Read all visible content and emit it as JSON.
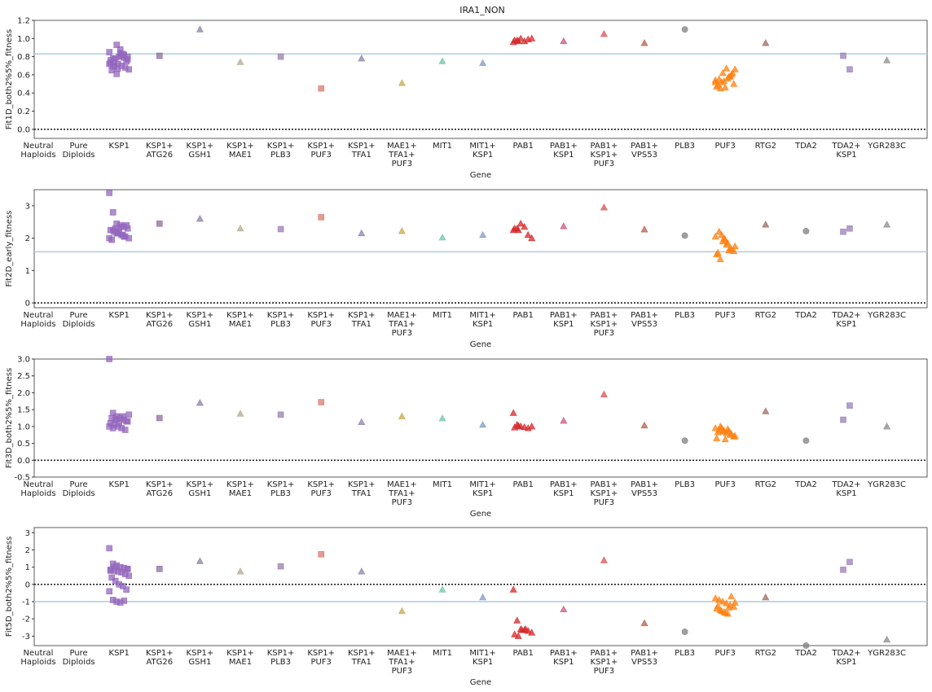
{
  "title": "IRA1_NON",
  "chart_data": [
    {
      "type": "scatter",
      "ylabel": "Fit1D_both2%5%_fitness",
      "xlabel": "Gene",
      "categories": [
        "Neutral\nHaploids",
        "Pure\nDiploids",
        "KSP1",
        "KSP1+\nATG26",
        "KSP1+\nGSH1",
        "KSP1+\nMAE1",
        "KSP1+\nPLB3",
        "KSP1+\nPUF3",
        "KSP1+\nTFA1",
        "MAE1+\nTFA1+\nPUF3",
        "MIT1",
        "MIT1+\nKSP1",
        "PAB1",
        "PAB1+\nKSP1",
        "PAB1+\nKSP1+\nPUF3",
        "PAB1+\nVPS53",
        "PLB3",
        "PUF3",
        "RTG2",
        "TDA2",
        "TDA2+\nKSP1",
        "YGR283C"
      ],
      "colors": [
        "#9467bd",
        "#9467bd",
        "#9467bd",
        "#8c6d9e",
        "#8c7fa0",
        "#b4a88a",
        "#9a7fae",
        "#d97a6c",
        "#8d81ad",
        "#c9a84f",
        "#6cc4a8",
        "#7f99c4",
        "#d62728",
        "#c65a7a",
        "#d9534f",
        "#b8604e",
        "#808080",
        "#ff7f0e",
        "#9c6b5a",
        "#7f7f7f",
        "#9a7fb8",
        "#8c8c8c"
      ],
      "markers": [
        "square",
        "square",
        "square",
        "square",
        "triangle",
        "triangle",
        "square",
        "square",
        "triangle",
        "triangle",
        "triangle",
        "triangle",
        "triangle",
        "triangle",
        "triangle",
        "triangle",
        "circle",
        "triangle",
        "triangle",
        "circle",
        "square",
        "triangle"
      ],
      "values": [
        [],
        [],
        [
          0.85,
          0.78,
          0.93,
          0.88,
          0.82,
          0.8,
          0.76,
          0.74,
          0.72,
          0.7,
          0.68,
          0.66,
          0.65,
          0.78,
          0.8,
          0.83,
          0.75,
          0.72,
          0.7,
          0.61,
          0.84,
          0.79,
          0.77,
          0.73,
          0.69,
          0.67,
          0.81
        ],
        [
          0.81
        ],
        [
          1.1
        ],
        [
          0.74
        ],
        [
          0.8
        ],
        [
          0.45
        ],
        [
          0.78
        ],
        [
          0.51
        ],
        [
          0.75
        ],
        [
          0.73
        ],
        [
          0.96,
          0.98,
          1.0,
          0.97,
          0.99,
          1.0,
          0.98,
          0.97
        ],
        [
          0.97
        ],
        [
          1.05
        ],
        [
          0.95
        ],
        [
          1.1
        ],
        [
          0.52,
          0.55,
          0.62,
          0.67,
          0.58,
          0.5,
          0.47,
          0.45,
          0.53,
          0.56,
          0.6,
          0.66,
          0.49,
          0.52,
          0.46,
          0.58,
          0.62,
          0.54
        ],
        [
          0.95
        ],
        [],
        [
          0.81,
          0.66
        ],
        [
          0.76
        ]
      ],
      "reference_lines": [
        {
          "value": 0,
          "style": "dotted",
          "color": "#222222"
        },
        {
          "value": 0.83,
          "style": "solid",
          "color": "#b7d3e0"
        }
      ],
      "ylim": [
        -0.1,
        1.2
      ],
      "yticks": [
        {
          "value": 0,
          "label": "0.0"
        },
        {
          "value": 0.2,
          "label": "0.2"
        },
        {
          "value": 0.4,
          "label": "0.4"
        },
        {
          "value": 0.6,
          "label": "0.6"
        },
        {
          "value": 0.8,
          "label": "0.8"
        },
        {
          "value": 1.0,
          "label": "1.0"
        },
        {
          "value": 1.2,
          "label": "1.2"
        }
      ]
    },
    {
      "type": "scatter",
      "ylabel": "Fit2D_early_fitness",
      "xlabel": "Gene",
      "categories": [
        "Neutral\nHaploids",
        "Pure\nDiploids",
        "KSP1",
        "KSP1+\nATG26",
        "KSP1+\nGSH1",
        "KSP1+\nMAE1",
        "KSP1+\nPLB3",
        "KSP1+\nPUF3",
        "KSP1+\nTFA1",
        "MAE1+\nTFA1+\nPUF3",
        "MIT1",
        "MIT1+\nKSP1",
        "PAB1",
        "PAB1+\nKSP1",
        "PAB1+\nKSP1+\nPUF3",
        "PAB1+\nVPS53",
        "PLB3",
        "PUF3",
        "RTG2",
        "TDA2",
        "TDA2+\nKSP1",
        "YGR283C"
      ],
      "colors": [
        "#9467bd",
        "#9467bd",
        "#9467bd",
        "#8c6d9e",
        "#8c7fa0",
        "#b4a88a",
        "#9a7fae",
        "#d97a6c",
        "#8d81ad",
        "#c9a84f",
        "#6cc4a8",
        "#7f99c4",
        "#d62728",
        "#c65a7a",
        "#d9534f",
        "#b8604e",
        "#808080",
        "#ff7f0e",
        "#9c6b5a",
        "#7f7f7f",
        "#9a7fb8",
        "#8c8c8c"
      ],
      "markers": [
        "square",
        "square",
        "square",
        "square",
        "triangle",
        "triangle",
        "square",
        "square",
        "triangle",
        "triangle",
        "triangle",
        "triangle",
        "triangle",
        "triangle",
        "triangle",
        "triangle",
        "circle",
        "triangle",
        "triangle",
        "circle",
        "square",
        "triangle"
      ],
      "values": [
        [],
        [],
        [
          3.4,
          2.8,
          2.45,
          2.4,
          2.35,
          2.3,
          2.25,
          2.2,
          2.15,
          2.1,
          2.05,
          2.0,
          1.95,
          2.3,
          2.2,
          2.1,
          2.4,
          2.0,
          2.25,
          2.15,
          2.35,
          2.05
        ],
        [
          2.45
        ],
        [
          2.6
        ],
        [
          2.3
        ],
        [
          2.28
        ],
        [
          2.65
        ],
        [
          2.15
        ],
        [
          2.22
        ],
        [
          2.02
        ],
        [
          2.1
        ],
        [
          2.25,
          2.3,
          2.45,
          2.35,
          2.1,
          2.0,
          2.3,
          2.25
        ],
        [
          2.37
        ],
        [
          2.95
        ],
        [
          2.27
        ],
        [
          2.08
        ],
        [
          2.05,
          2.2,
          1.9,
          1.8,
          1.7,
          1.6,
          1.5,
          1.35,
          2.0,
          1.85,
          1.65,
          1.75,
          1.55,
          2.1,
          1.95,
          1.62
        ],
        [
          2.42
        ],
        [
          2.22
        ],
        [
          2.2,
          2.3
        ],
        [
          2.42
        ]
      ],
      "reference_lines": [
        {
          "value": 0,
          "style": "dotted",
          "color": "#222222"
        },
        {
          "value": 1.58,
          "style": "solid",
          "color": "#b7d3e0"
        }
      ],
      "ylim": [
        -0.15,
        3.5
      ],
      "yticks": [
        0,
        1,
        2,
        3
      ]
    },
    {
      "type": "scatter",
      "ylabel": "Fit3D_both2%5%_fitness",
      "xlabel": "Gene",
      "categories": [
        "Neutral\nHaploids",
        "Pure\nDiploids",
        "KSP1",
        "KSP1+\nATG26",
        "KSP1+\nGSH1",
        "KSP1+\nMAE1",
        "KSP1+\nPLB3",
        "KSP1+\nPUF3",
        "KSP1+\nTFA1",
        "MAE1+\nTFA1+\nPUF3",
        "MIT1",
        "MIT1+\nKSP1",
        "PAB1",
        "PAB1+\nKSP1",
        "PAB1+\nKSP1+\nPUF3",
        "PAB1+\nVPS53",
        "PLB3",
        "PUF3",
        "RTG2",
        "TDA2",
        "TDA2+\nKSP1",
        "YGR283C"
      ],
      "colors": [
        "#9467bd",
        "#9467bd",
        "#9467bd",
        "#8c6d9e",
        "#8c7fa0",
        "#b4a88a",
        "#9a7fae",
        "#d97a6c",
        "#8d81ad",
        "#c9a84f",
        "#6cc4a8",
        "#7f99c4",
        "#d62728",
        "#c65a7a",
        "#d9534f",
        "#b8604e",
        "#808080",
        "#ff7f0e",
        "#9c6b5a",
        "#7f7f7f",
        "#9a7fb8",
        "#8c8c8c"
      ],
      "markers": [
        "square",
        "square",
        "square",
        "square",
        "triangle",
        "triangle",
        "square",
        "square",
        "triangle",
        "triangle",
        "triangle",
        "triangle",
        "triangle",
        "triangle",
        "triangle",
        "triangle",
        "circle",
        "triangle",
        "triangle",
        "circle",
        "square",
        "triangle"
      ],
      "values": [
        [],
        [],
        [
          3.0,
          1.4,
          1.3,
          1.25,
          1.2,
          1.15,
          1.1,
          1.05,
          1.0,
          0.95,
          0.9,
          1.35,
          1.25,
          1.2,
          1.1,
          1.3,
          1.15,
          1.0,
          0.95,
          1.22
        ],
        [
          1.25
        ],
        [
          1.7
        ],
        [
          1.38
        ],
        [
          1.35
        ],
        [
          1.72
        ],
        [
          1.13
        ],
        [
          1.3
        ],
        [
          1.24
        ],
        [
          1.05
        ],
        [
          1.4,
          1.05,
          1.0,
          0.98,
          0.95,
          1.0,
          0.97,
          1.02
        ],
        [
          1.17
        ],
        [
          1.95
        ],
        [
          1.03
        ],
        [
          0.58
        ],
        [
          0.95,
          0.9,
          0.85,
          0.8,
          0.75,
          0.7,
          0.65,
          1.0,
          0.88,
          0.92,
          0.78,
          0.72,
          0.83,
          0.96,
          0.62,
          0.87
        ],
        [
          1.45
        ],
        [
          0.58
        ],
        [
          1.2,
          1.62
        ],
        [
          1.0
        ]
      ],
      "reference_lines": [
        {
          "value": 0,
          "style": "dotted",
          "color": "#222222"
        }
      ],
      "ylim": [
        -0.5,
        3.0
      ],
      "yticks": [
        {
          "value": -0.5,
          "label": "-0.5"
        },
        {
          "value": 0,
          "label": "0.0"
        },
        {
          "value": 0.5,
          "label": "0.5"
        },
        {
          "value": 1.0,
          "label": "1.0"
        },
        {
          "value": 1.5,
          "label": "1.5"
        },
        {
          "value": 2.0,
          "label": "2.0"
        },
        {
          "value": 2.5,
          "label": "2.5"
        },
        {
          "value": 3.0,
          "label": "3.0"
        }
      ]
    },
    {
      "type": "scatter",
      "ylabel": "Fit5D_both2%5%_fitness",
      "xlabel": "Gene",
      "categories": [
        "Neutral\nHaploids",
        "Pure\nDiploids",
        "KSP1",
        "KSP1+\nATG26",
        "KSP1+\nGSH1",
        "KSP1+\nMAE1",
        "KSP1+\nPLB3",
        "KSP1+\nPUF3",
        "KSP1+\nTFA1",
        "MAE1+\nTFA1+\nPUF3",
        "MIT1",
        "MIT1+\nKSP1",
        "PAB1",
        "PAB1+\nKSP1",
        "PAB1+\nKSP1+\nPUF3",
        "PAB1+\nVPS53",
        "PLB3",
        "PUF3",
        "RTG2",
        "TDA2",
        "TDA2+\nKSP1",
        "YGR283C"
      ],
      "colors": [
        "#9467bd",
        "#9467bd",
        "#9467bd",
        "#8c6d9e",
        "#8c7fa0",
        "#b4a88a",
        "#9a7fae",
        "#d97a6c",
        "#8d81ad",
        "#c9a84f",
        "#6cc4a8",
        "#7f99c4",
        "#d62728",
        "#c65a7a",
        "#d9534f",
        "#b8604e",
        "#808080",
        "#ff7f0e",
        "#9c6b5a",
        "#7f7f7f",
        "#9a7fb8",
        "#8c8c8c"
      ],
      "markers": [
        "square",
        "square",
        "square",
        "square",
        "triangle",
        "triangle",
        "square",
        "square",
        "triangle",
        "triangle",
        "triangle",
        "triangle",
        "triangle",
        "triangle",
        "triangle",
        "triangle",
        "circle",
        "triangle",
        "triangle",
        "circle",
        "square",
        "triangle"
      ],
      "values": [
        [],
        [],
        [
          2.1,
          1.2,
          1.1,
          1.0,
          0.95,
          0.9,
          0.85,
          0.8,
          0.75,
          0.7,
          0.6,
          0.5,
          0.4,
          0.2,
          0.0,
          -0.1,
          -0.3,
          -0.4,
          -0.9,
          -1.0,
          -1.05,
          -0.95,
          0.9,
          0.8,
          1.0
        ],
        [
          0.9
        ],
        [
          1.35
        ],
        [
          0.75
        ],
        [
          1.05
        ],
        [
          1.75
        ],
        [
          0.75
        ],
        [
          -1.55
        ],
        [
          -0.3
        ],
        [
          -0.75
        ],
        [
          -0.3,
          -2.1,
          -2.6,
          -2.65,
          -2.7,
          -2.8,
          -2.9,
          -3.0,
          -2.65,
          -2.6
        ],
        [
          -1.45
        ],
        [
          1.4
        ],
        [
          -2.25
        ],
        [
          -2.75
        ],
        [
          -0.8,
          -0.9,
          -1.0,
          -1.1,
          -1.2,
          -1.3,
          -1.4,
          -1.5,
          -1.6,
          -1.7,
          -0.7,
          -1.05,
          -1.25,
          -1.55,
          -1.65,
          -1.35
        ],
        [
          -0.75
        ],
        [
          -3.55
        ],
        [
          0.85,
          1.3
        ],
        [
          -3.2
        ]
      ],
      "reference_lines": [
        {
          "value": 0,
          "style": "dotted",
          "color": "#222222"
        },
        {
          "value": -1.0,
          "style": "solid",
          "color": "#b7d3e0"
        }
      ],
      "ylim": [
        -3.55,
        3.3
      ],
      "yticks": [
        -3,
        -2,
        -1,
        0,
        1,
        2,
        3
      ]
    }
  ]
}
